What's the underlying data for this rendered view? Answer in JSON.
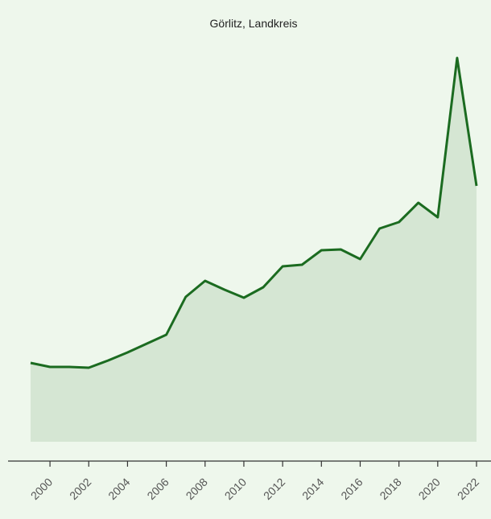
{
  "chart_data": {
    "type": "area",
    "title": "Görlitz, Landkreis",
    "x": [
      1999,
      2000,
      2001,
      2002,
      2003,
      2004,
      2005,
      2006,
      2007,
      2008,
      2009,
      2010,
      2011,
      2012,
      2013,
      2014,
      2015,
      2016,
      2017,
      2018,
      2019,
      2020,
      2021,
      2022
    ],
    "series": [
      {
        "color": "#1b6b20",
        "fill": "#d5e6d3",
        "values": [
          98,
          93,
          93,
          92,
          101,
          111,
          122,
          133,
          180,
          200,
          189,
          179,
          192,
          218,
          220,
          238,
          239,
          227,
          265,
          273,
          297,
          279,
          477,
          318
        ]
      }
    ],
    "xlim": [
      1999,
      2022
    ],
    "ylim": [
      0,
      477
    ],
    "xticks": [
      2000,
      2002,
      2004,
      2006,
      2008,
      2010,
      2012,
      2014,
      2016,
      2018,
      2020,
      2022
    ]
  }
}
